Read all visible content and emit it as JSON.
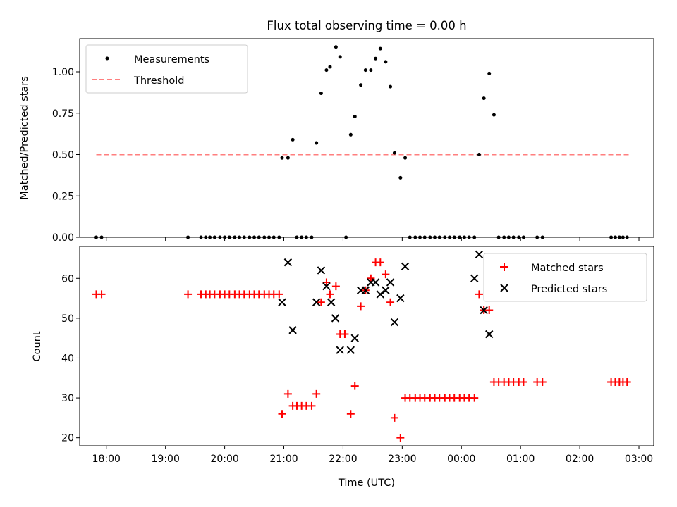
{
  "title": "Flux total observing time = 0.00 h",
  "chart_data": [
    {
      "type": "scatter",
      "panel": "top",
      "ylabel": "Matched/Predicted stars",
      "ylim": [
        0,
        1.2
      ],
      "xlim": [
        17.55,
        27.25
      ],
      "yticks": [
        0.0,
        0.25,
        0.5,
        0.75,
        1.0
      ],
      "ytick_labels": [
        "0.00",
        "0.25",
        "0.50",
        "0.75",
        "1.00"
      ],
      "legend_position": "upper-left",
      "series": [
        {
          "name": "Measurements",
          "marker": "dot",
          "color": "#000000",
          "x": [
            17.83,
            17.92,
            19.38,
            19.6,
            19.68,
            19.75,
            19.83,
            19.92,
            20.0,
            20.08,
            20.17,
            20.25,
            20.33,
            20.42,
            20.5,
            20.58,
            20.67,
            20.75,
            20.83,
            20.92,
            20.97,
            21.07,
            21.15,
            21.22,
            21.3,
            21.38,
            21.47,
            21.55,
            21.63,
            21.72,
            21.78,
            21.88,
            21.95,
            22.05,
            22.13,
            22.2,
            22.3,
            22.38,
            22.47,
            22.55,
            22.63,
            22.72,
            22.8,
            22.87,
            22.97,
            23.05,
            23.13,
            23.22,
            23.3,
            23.38,
            23.47,
            23.55,
            23.63,
            23.72,
            23.8,
            23.88,
            23.97,
            24.05,
            24.13,
            24.22,
            24.3,
            24.38,
            24.47,
            24.55,
            24.63,
            24.72,
            24.8,
            24.88,
            24.97,
            25.05,
            25.28,
            25.37,
            26.53,
            26.6,
            26.67,
            26.73,
            26.8
          ],
          "y": [
            0.0,
            0.0,
            0.0,
            0.0,
            0.0,
            0.0,
            0.0,
            0.0,
            0.0,
            0.0,
            0.0,
            0.0,
            0.0,
            0.0,
            0.0,
            0.0,
            0.0,
            0.0,
            0.0,
            0.0,
            0.48,
            0.48,
            0.59,
            0.0,
            0.0,
            0.0,
            0.0,
            0.57,
            0.87,
            1.01,
            1.03,
            1.15,
            1.09,
            0.0,
            0.62,
            0.73,
            0.92,
            1.01,
            1.01,
            1.08,
            1.14,
            1.06,
            0.91,
            0.51,
            0.36,
            0.48,
            0.0,
            0.0,
            0.0,
            0.0,
            0.0,
            0.0,
            0.0,
            0.0,
            0.0,
            0.0,
            0.0,
            0.0,
            0.0,
            0.0,
            0.5,
            0.84,
            0.99,
            0.74,
            0.0,
            0.0,
            0.0,
            0.0,
            0.0,
            0.0,
            0.0,
            0.0,
            0.0,
            0.0,
            0.0,
            0.0,
            0.0
          ]
        },
        {
          "name": "Threshold",
          "marker": "dashed-line",
          "color": "#ff7f7f",
          "x": [
            17.83,
            26.87
          ],
          "y": [
            0.5,
            0.5
          ]
        }
      ]
    },
    {
      "type": "scatter",
      "panel": "bottom",
      "xlabel": "Time (UTC)",
      "ylabel": "Count",
      "ylim": [
        18,
        68
      ],
      "xlim": [
        17.55,
        27.25
      ],
      "yticks": [
        20,
        30,
        40,
        50,
        60
      ],
      "ytick_labels": [
        "20",
        "30",
        "40",
        "50",
        "60"
      ],
      "xticks": [
        18,
        19,
        20,
        21,
        22,
        23,
        24,
        25,
        26,
        27
      ],
      "xtick_labels": [
        "18:00",
        "19:00",
        "20:00",
        "21:00",
        "22:00",
        "23:00",
        "00:00",
        "01:00",
        "02:00",
        "03:00"
      ],
      "legend_position": "upper-right",
      "series": [
        {
          "name": "Matched stars",
          "marker": "plus",
          "color": "#ff0000",
          "x": [
            17.83,
            17.92,
            19.38,
            19.6,
            19.68,
            19.75,
            19.83,
            19.92,
            20.0,
            20.08,
            20.17,
            20.25,
            20.33,
            20.42,
            20.5,
            20.58,
            20.67,
            20.75,
            20.83,
            20.92,
            20.97,
            21.07,
            21.15,
            21.22,
            21.3,
            21.38,
            21.47,
            21.55,
            21.63,
            21.72,
            21.78,
            21.88,
            21.95,
            22.03,
            22.13,
            22.2,
            22.3,
            22.38,
            22.47,
            22.55,
            22.63,
            22.72,
            22.8,
            22.87,
            22.97,
            23.05,
            23.13,
            23.22,
            23.3,
            23.38,
            23.47,
            23.55,
            23.63,
            23.72,
            23.8,
            23.88,
            23.97,
            24.05,
            24.13,
            24.22,
            24.3,
            24.38,
            24.47,
            24.55,
            24.63,
            24.72,
            24.8,
            24.88,
            24.97,
            25.05,
            25.28,
            25.37,
            26.53,
            26.6,
            26.67,
            26.73,
            26.8
          ],
          "y": [
            56,
            56,
            56,
            56,
            56,
            56,
            56,
            56,
            56,
            56,
            56,
            56,
            56,
            56,
            56,
            56,
            56,
            56,
            56,
            56,
            26,
            31,
            28,
            28,
            28,
            28,
            28,
            31,
            54,
            59,
            56,
            58,
            46,
            46,
            26,
            33,
            53,
            57,
            60,
            64,
            64,
            61,
            54,
            25,
            20,
            30,
            30,
            30,
            30,
            30,
            30,
            30,
            30,
            30,
            30,
            30,
            30,
            30,
            30,
            30,
            56,
            52,
            52,
            34,
            34,
            34,
            34,
            34,
            34,
            34,
            34,
            34,
            34,
            34,
            34,
            34,
            34
          ]
        },
        {
          "name": "Predicted stars",
          "marker": "x",
          "color": "#000000",
          "x": [
            20.97,
            21.07,
            21.15,
            21.55,
            21.63,
            21.72,
            21.8,
            21.87,
            21.95,
            22.13,
            22.2,
            22.3,
            22.38,
            22.47,
            22.55,
            22.63,
            22.72,
            22.8,
            22.87,
            22.97,
            23.05,
            24.22,
            24.3,
            24.38,
            24.47
          ],
          "y": [
            54,
            64,
            47,
            54,
            62,
            58,
            54,
            50,
            42,
            42,
            45,
            57,
            57,
            59,
            59,
            56,
            57,
            59,
            49,
            55,
            63,
            60,
            66,
            52,
            46
          ]
        }
      ]
    }
  ]
}
